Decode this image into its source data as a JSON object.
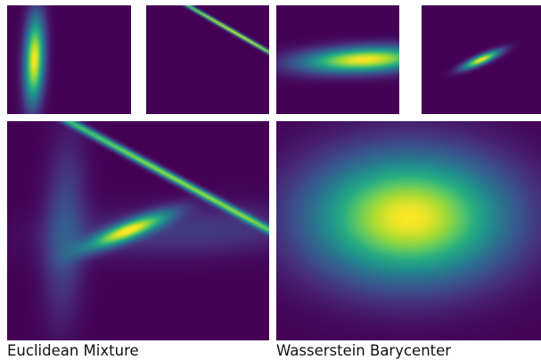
{
  "colors": {
    "background": "#440154",
    "colormap": "viridis",
    "text": "#111111"
  },
  "captions": {
    "left": "Euclidean Mixture",
    "right": "Wasserstein Barycenter"
  },
  "chart_data": [
    {
      "type": "heatmap",
      "name": "input-1",
      "description_free": true,
      "gaussians": [
        {
          "cx": 0.22,
          "cy": 0.5,
          "sx": 0.055,
          "sy": 0.28,
          "angle_deg": 2,
          "peak": 1.0
        }
      ]
    },
    {
      "type": "heatmap",
      "name": "input-2",
      "gaussians": [
        {
          "cx": 0.72,
          "cy": 0.25,
          "sx": 0.6,
          "sy": 0.012,
          "angle_deg": 33,
          "peak": 1.0
        }
      ]
    },
    {
      "type": "heatmap",
      "name": "input-3",
      "gaussians": [
        {
          "cx": 0.72,
          "cy": 0.5,
          "sx": 0.36,
          "sy": 0.08,
          "angle_deg": -3,
          "peak": 1.0
        }
      ]
    },
    {
      "type": "heatmap",
      "name": "input-4",
      "gaussians": [
        {
          "cx": 0.5,
          "cy": 0.5,
          "sx": 0.12,
          "sy": 0.028,
          "angle_deg": -26,
          "peak": 1.0
        }
      ]
    },
    {
      "type": "heatmap",
      "name": "euclidean-mixture",
      "gaussians": [
        {
          "cx": 0.22,
          "cy": 0.5,
          "sx": 0.055,
          "sy": 0.28,
          "angle_deg": 2,
          "peak": 0.25
        },
        {
          "cx": 0.62,
          "cy": 0.25,
          "sx": 0.6,
          "sy": 0.012,
          "angle_deg": 33,
          "peak": 0.85
        },
        {
          "cx": 0.72,
          "cy": 0.5,
          "sx": 0.36,
          "sy": 0.08,
          "angle_deg": -3,
          "peak": 0.18
        },
        {
          "cx": 0.46,
          "cy": 0.5,
          "sx": 0.12,
          "sy": 0.028,
          "angle_deg": -26,
          "peak": 0.9
        }
      ]
    },
    {
      "type": "heatmap",
      "name": "wasserstein-barycenter",
      "gaussians": [
        {
          "cx": 0.5,
          "cy": 0.44,
          "sx": 0.26,
          "sy": 0.2,
          "angle_deg": 0,
          "peak": 1.0
        }
      ]
    }
  ]
}
